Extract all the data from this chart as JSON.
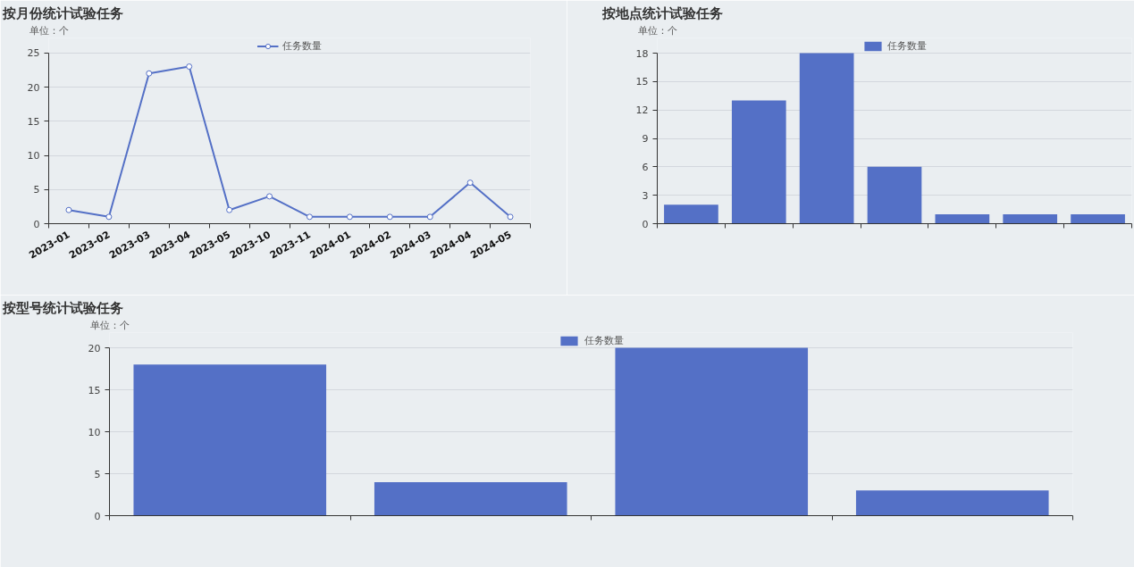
{
  "chart_data": [
    {
      "type": "line",
      "title": "按月份统计试验任务",
      "ylabel": "单位：个",
      "categories": [
        "2023-01",
        "2023-02",
        "2023-03",
        "2023-04",
        "2023-05",
        "2023-10",
        "2023-11",
        "2024-01",
        "2024-02",
        "2024-03",
        "2024-04",
        "2024-05"
      ],
      "series": [
        {
          "name": "任务数量",
          "color": "#5470c6",
          "values": [
            2,
            1,
            22,
            23,
            2,
            4,
            1,
            1,
            1,
            1,
            6,
            1
          ]
        }
      ],
      "ylim": [
        0,
        25
      ],
      "yticks": [
        0,
        5,
        10,
        15,
        20,
        25
      ],
      "grid": "y",
      "legend": "top",
      "marker": "circle",
      "line_style": "solid"
    },
    {
      "type": "bar",
      "title": "按地点统计试验任务",
      "ylabel": "单位：个",
      "categories": [
        null,
        null,
        null,
        null,
        null,
        null,
        null
      ],
      "series": [
        {
          "name": "任务数量",
          "color": "#5470c6",
          "values": [
            2,
            13,
            18,
            6,
            1,
            1,
            1
          ]
        }
      ],
      "ylim": [
        0,
        18
      ],
      "yticks": [
        0,
        3,
        6,
        9,
        12,
        15,
        18
      ],
      "grid": "y",
      "legend": "top"
    },
    {
      "type": "bar",
      "title": "按型号统计试验任务",
      "ylabel": "单位：个",
      "categories": [
        null,
        null,
        null,
        null
      ],
      "series": [
        {
          "name": "任务数量",
          "color": "#5470c6",
          "values": [
            18,
            4,
            20,
            3
          ]
        }
      ],
      "ylim": [
        0,
        20
      ],
      "yticks": [
        0,
        5,
        10,
        15,
        20
      ],
      "grid": "y",
      "legend": "top"
    }
  ]
}
